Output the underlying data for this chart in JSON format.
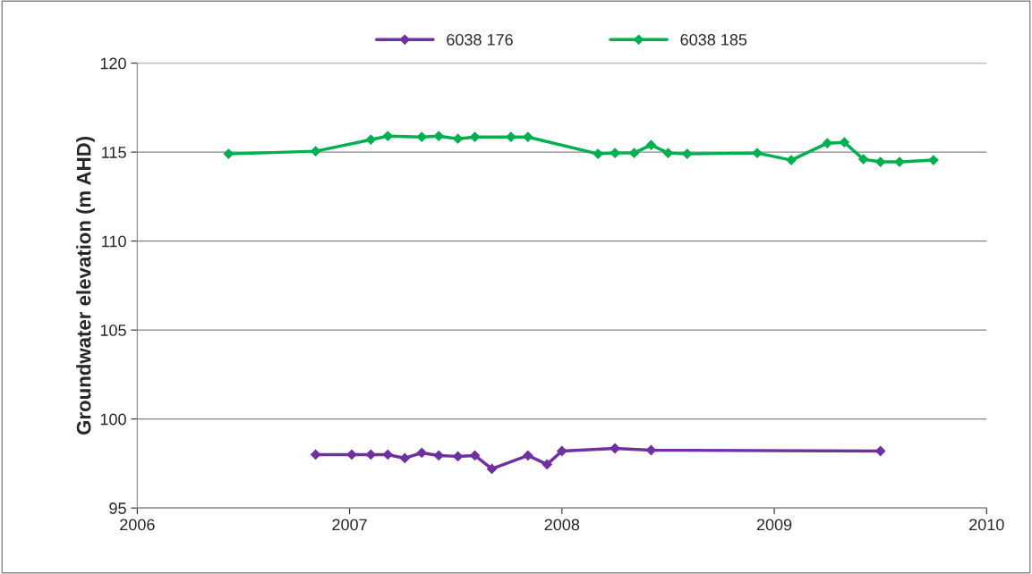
{
  "chart_data": {
    "type": "line",
    "ylabel": "Groundwater elevation (m AHD)",
    "xlim": [
      2006,
      2010
    ],
    "xticks": [
      2006,
      2007,
      2008,
      2009,
      2010
    ],
    "ylim": [
      95,
      120
    ],
    "yticks": [
      95,
      100,
      105,
      110,
      115,
      120
    ],
    "grid": "y",
    "legend": "top",
    "marker": "diamond",
    "line_style": "solid",
    "series": [
      {
        "name": "6038 176",
        "color": "#7030a0",
        "x": [
          2006.84,
          2007.01,
          2007.1,
          2007.18,
          2007.26,
          2007.34,
          2007.42,
          2007.51,
          2007.59,
          2007.67,
          2007.84,
          2007.93,
          2008.0,
          2008.25,
          2008.42,
          2009.5
        ],
        "values": [
          98.0,
          98.0,
          98.0,
          98.0,
          97.8,
          98.1,
          97.95,
          97.9,
          97.95,
          97.2,
          97.95,
          97.45,
          98.2,
          98.35,
          98.25,
          98.2
        ]
      },
      {
        "name": "6038 185",
        "color": "#00b050",
        "x": [
          2006.43,
          2006.84,
          2007.1,
          2007.18,
          2007.34,
          2007.42,
          2007.51,
          2007.59,
          2007.76,
          2007.84,
          2008.17,
          2008.25,
          2008.34,
          2008.42,
          2008.5,
          2008.59,
          2008.92,
          2009.08,
          2009.25,
          2009.33,
          2009.42,
          2009.5,
          2009.59,
          2009.75
        ],
        "values": [
          114.9,
          115.05,
          115.7,
          115.9,
          115.85,
          115.9,
          115.75,
          115.85,
          115.85,
          115.85,
          114.9,
          114.95,
          114.95,
          115.4,
          114.95,
          114.9,
          114.95,
          114.55,
          115.5,
          115.55,
          114.6,
          114.45,
          114.45,
          114.55
        ]
      }
    ]
  }
}
